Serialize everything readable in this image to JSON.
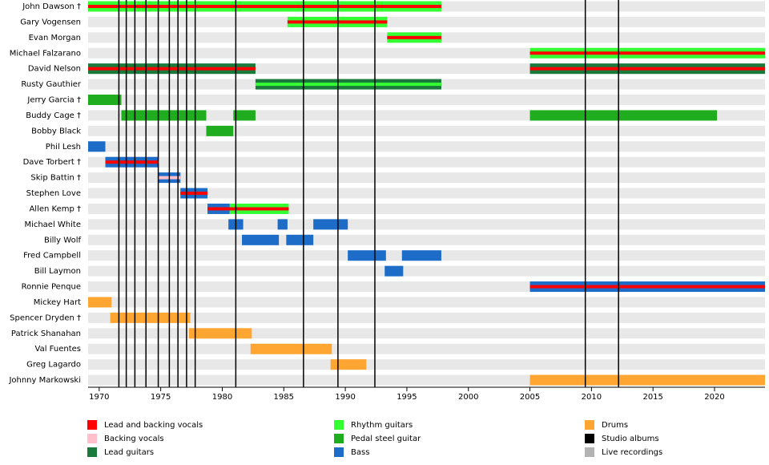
{
  "chart_data": {
    "type": "timeline",
    "categories": [
      "John Dawson †",
      "Gary Vogensen",
      "Evan Morgan",
      "Michael Falzarano",
      "David Nelson",
      "Rusty Gauthier",
      "Jerry Garcia †",
      "Buddy Cage †",
      "Bobby Black",
      "Phil Lesh",
      "Dave Torbert †",
      "Skip Battin †",
      "Stephen Love",
      "Allen Kemp †",
      "Michael White",
      "Billy Wolf",
      "Fred Campbell",
      "Bill Laymon",
      "Ronnie Penque",
      "Mickey Hart",
      "Spencer Dryden †",
      "Patrick Shanahan",
      "Val Fuentes",
      "Greg Lagardo",
      "Johnny Markowski"
    ],
    "xlim": [
      1969.1,
      2024.1
    ],
    "xticks": [
      1970,
      1975,
      1980,
      1985,
      1990,
      1995,
      2000,
      2005,
      2010,
      2015,
      2020
    ],
    "series": [
      {
        "name": "Lead and backing vocals",
        "color": "#ff0000",
        "spans": [],
        "stripes": [
          {
            "row": 0,
            "start": 1969.1,
            "end": 1997.8
          },
          {
            "row": 1,
            "start": 1985.3,
            "end": 1993.4
          },
          {
            "row": 2,
            "start": 1993.4,
            "end": 1997.8
          },
          {
            "row": 3,
            "start": 2005.0,
            "end": 2024.1
          },
          {
            "row": 4,
            "start": 1969.1,
            "end": 1982.7
          },
          {
            "row": 4,
            "start": 2005.0,
            "end": 2024.1
          },
          {
            "row": 10,
            "start": 1970.5,
            "end": 1974.8
          },
          {
            "row": 12,
            "start": 1976.6,
            "end": 1978.8
          },
          {
            "row": 13,
            "start": 1978.8,
            "end": 1985.4
          },
          {
            "row": 18,
            "start": 2005.0,
            "end": 2024.1
          }
        ]
      },
      {
        "name": "Backing vocals",
        "color": "#ffc0cb",
        "spans": [],
        "stripes": [
          {
            "row": 11,
            "start": 1974.8,
            "end": 1976.6
          }
        ]
      },
      {
        "name": "Lead guitars",
        "color": "#1a7a3c",
        "spans": [
          {
            "row": 4,
            "start": 1969.1,
            "end": 1982.7
          },
          {
            "row": 4,
            "start": 2005.0,
            "end": 2024.1
          },
          {
            "row": 5,
            "start": 1982.7,
            "end": 1997.8
          }
        ],
        "stripes": []
      },
      {
        "name": "Rhythm guitars",
        "color": "#33ff33",
        "spans": [
          {
            "row": 0,
            "start": 1969.1,
            "end": 1997.8
          },
          {
            "row": 1,
            "start": 1985.3,
            "end": 1993.4
          },
          {
            "row": 2,
            "start": 1993.4,
            "end": 1997.8
          },
          {
            "row": 3,
            "start": 2005.0,
            "end": 2024.1
          },
          {
            "row": 13,
            "start": 1980.6,
            "end": 1985.4
          }
        ],
        "stripes": [
          {
            "row": 5,
            "start": 1982.7,
            "end": 1997.8
          }
        ]
      },
      {
        "name": "Pedal steel guitar",
        "color": "#1fac1f",
        "spans": [
          {
            "row": 6,
            "start": 1969.1,
            "end": 1971.8
          },
          {
            "row": 7,
            "start": 1971.8,
            "end": 1978.7
          },
          {
            "row": 7,
            "start": 1980.9,
            "end": 1982.7
          },
          {
            "row": 7,
            "start": 2005.0,
            "end": 2020.2
          },
          {
            "row": 8,
            "start": 1978.7,
            "end": 1980.9
          }
        ],
        "stripes": []
      },
      {
        "name": "Bass",
        "color": "#1c6cc8",
        "spans": [
          {
            "row": 9,
            "start": 1969.1,
            "end": 1970.5
          },
          {
            "row": 10,
            "start": 1970.5,
            "end": 1974.8
          },
          {
            "row": 11,
            "start": 1974.8,
            "end": 1976.6
          },
          {
            "row": 12,
            "start": 1976.6,
            "end": 1978.8
          },
          {
            "row": 13,
            "start": 1978.8,
            "end": 1980.6
          },
          {
            "row": 14,
            "start": 1980.5,
            "end": 1981.7
          },
          {
            "row": 14,
            "start": 1984.5,
            "end": 1985.3
          },
          {
            "row": 14,
            "start": 1987.4,
            "end": 1990.2
          },
          {
            "row": 15,
            "start": 1981.6,
            "end": 1984.6
          },
          {
            "row": 15,
            "start": 1985.2,
            "end": 1987.4
          },
          {
            "row": 16,
            "start": 1990.2,
            "end": 1993.3
          },
          {
            "row": 16,
            "start": 1994.6,
            "end": 1997.8
          },
          {
            "row": 17,
            "start": 1993.2,
            "end": 1994.7
          },
          {
            "row": 18,
            "start": 2005.0,
            "end": 2024.1
          }
        ],
        "stripes": []
      },
      {
        "name": "Drums",
        "color": "#ffa531",
        "spans": [
          {
            "row": 19,
            "start": 1969.1,
            "end": 1971.0
          },
          {
            "row": 20,
            "start": 1970.9,
            "end": 1977.4
          },
          {
            "row": 21,
            "start": 1977.3,
            "end": 1982.4
          },
          {
            "row": 22,
            "start": 1982.3,
            "end": 1988.9
          },
          {
            "row": 23,
            "start": 1988.8,
            "end": 1991.7
          },
          {
            "row": 24,
            "start": 2005.0,
            "end": 2024.1
          }
        ],
        "stripes": []
      },
      {
        "name": "Studio albums",
        "color": "#000000",
        "spans": [],
        "stripes": [],
        "lines": [
          1971.6,
          1972.2,
          1972.9,
          1973.8,
          1974.8,
          1975.7,
          1976.4,
          1977.1,
          1977.8,
          1981.1,
          1986.6,
          1989.4,
          1992.4,
          2009.5,
          2012.2
        ]
      },
      {
        "name": "Live recordings",
        "color": "#b3b3b3",
        "spans": [],
        "stripes": [],
        "lines": []
      }
    ]
  }
}
